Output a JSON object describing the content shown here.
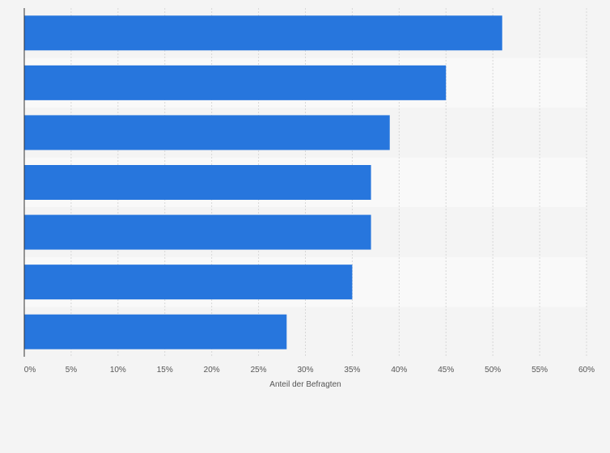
{
  "chart_data": {
    "type": "bar",
    "orientation": "horizontal",
    "title": "",
    "xlabel": "Anteil der Befragten",
    "ylabel": "",
    "xlim": [
      0,
      60
    ],
    "x_ticks": [
      0,
      5,
      10,
      15,
      20,
      25,
      30,
      35,
      40,
      45,
      50,
      55,
      60
    ],
    "x_tick_labels": [
      "0%",
      "5%",
      "10%",
      "15%",
      "20%",
      "25%",
      "30%",
      "35%",
      "40%",
      "45%",
      "50%",
      "55%",
      "60%"
    ],
    "categories": [
      "",
      "",
      "",
      "",
      "",
      "",
      ""
    ],
    "values": [
      51,
      45,
      39,
      37,
      37,
      35,
      28
    ],
    "unit": "%",
    "grid": true,
    "legend": "none"
  },
  "colors": {
    "bar": "#2776dd",
    "band_light": "#f9f9f9",
    "band_dark": "#f4f4f4",
    "grid": "#d7d7d7",
    "axis": "#333333",
    "text": "#555555",
    "page": "#f4f4f4"
  }
}
